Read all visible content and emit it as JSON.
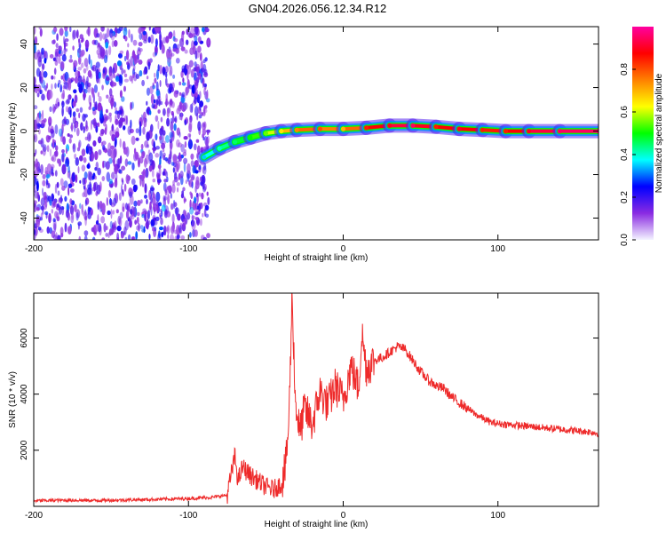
{
  "title": "GN04.2026.056.12.34.R12",
  "chart_data": [
    {
      "type": "heatmap",
      "xlabel": "Height of straight line (km)",
      "ylabel": "Frequency (Hz)",
      "xlim": [
        -200,
        165
      ],
      "ylim": [
        -50,
        48
      ],
      "x_ticks": [
        -200,
        -100,
        0,
        100
      ],
      "y_ticks": [
        -40,
        -20,
        0,
        20,
        40
      ],
      "noise_region": {
        "x_from": -200,
        "x_to": -87,
        "level": "low (0.1-0.25)"
      },
      "ridge": [
        {
          "x": -90,
          "y": -12,
          "amplitude": 0.35
        },
        {
          "x": -80,
          "y": -8,
          "amplitude": 0.4
        },
        {
          "x": -70,
          "y": -5,
          "amplitude": 0.45
        },
        {
          "x": -60,
          "y": -3,
          "amplitude": 0.5
        },
        {
          "x": -50,
          "y": -1,
          "amplitude": 0.55
        },
        {
          "x": -40,
          "y": 0,
          "amplitude": 0.65
        },
        {
          "x": -30,
          "y": 0.5,
          "amplitude": 0.75
        },
        {
          "x": -15,
          "y": 1,
          "amplitude": 0.8
        },
        {
          "x": 0,
          "y": 1,
          "amplitude": 0.7
        },
        {
          "x": 15,
          "y": 1.5,
          "amplitude": 0.85
        },
        {
          "x": 30,
          "y": 2.5,
          "amplitude": 0.9
        },
        {
          "x": 45,
          "y": 2.5,
          "amplitude": 0.95
        },
        {
          "x": 60,
          "y": 2,
          "amplitude": 0.85
        },
        {
          "x": 75,
          "y": 1,
          "amplitude": 0.9
        },
        {
          "x": 90,
          "y": 0.5,
          "amplitude": 0.85
        },
        {
          "x": 105,
          "y": 0,
          "amplitude": 0.85
        },
        {
          "x": 120,
          "y": 0,
          "amplitude": 0.9
        },
        {
          "x": 140,
          "y": 0,
          "amplitude": 0.95
        },
        {
          "x": 165,
          "y": 0,
          "amplitude": 0.95
        }
      ],
      "colorbar": {
        "label": "Normalized spectral amplitude",
        "range": [
          0,
          1
        ],
        "ticks": [
          "0.0",
          "0.2",
          "0.4",
          "0.6",
          "0.8"
        ],
        "colors": [
          "#f4f4ff",
          "#8a2be2",
          "#0000ff",
          "#00ffff",
          "#00ff00",
          "#ffff00",
          "#ff8000",
          "#ff0000",
          "#ff00a0"
        ]
      }
    },
    {
      "type": "line",
      "xlabel": "Height of straight line (km)",
      "ylabel": "SNR (10 * v/v)",
      "xlim": [
        -200,
        165
      ],
      "ylim": [
        0,
        7600
      ],
      "x_ticks": [
        -200,
        -100,
        0,
        100
      ],
      "y_ticks": [
        2000,
        4000,
        6000
      ],
      "color": "#ee2a2a",
      "series": [
        {
          "name": "SNR",
          "points": [
            [
              -200,
              200
            ],
            [
              -180,
              220
            ],
            [
              -160,
              210
            ],
            [
              -140,
              230
            ],
            [
              -120,
              250
            ],
            [
              -100,
              280
            ],
            [
              -85,
              320
            ],
            [
              -75,
              400
            ],
            [
              -70,
              1800
            ],
            [
              -68,
              900
            ],
            [
              -65,
              1400
            ],
            [
              -60,
              1100
            ],
            [
              -55,
              900
            ],
            [
              -50,
              700
            ],
            [
              -45,
              600
            ],
            [
              -40,
              800
            ],
            [
              -37,
              1500
            ],
            [
              -35,
              3200
            ],
            [
              -33,
              7600
            ],
            [
              -31,
              3800
            ],
            [
              -28,
              2600
            ],
            [
              -25,
              3500
            ],
            [
              -20,
              2900
            ],
            [
              -15,
              4100
            ],
            [
              -10,
              3600
            ],
            [
              -5,
              4300
            ],
            [
              0,
              3800
            ],
            [
              5,
              5000
            ],
            [
              10,
              4200
            ],
            [
              12,
              6200
            ],
            [
              15,
              4900
            ],
            [
              20,
              5200
            ],
            [
              25,
              5300
            ],
            [
              30,
              5500
            ],
            [
              35,
              5700
            ],
            [
              40,
              5600
            ],
            [
              45,
              5200
            ],
            [
              50,
              4800
            ],
            [
              55,
              4500
            ],
            [
              60,
              4300
            ],
            [
              65,
              4200
            ],
            [
              70,
              3900
            ],
            [
              75,
              3700
            ],
            [
              80,
              3500
            ],
            [
              85,
              3300
            ],
            [
              90,
              3150
            ],
            [
              95,
              3000
            ],
            [
              100,
              2950
            ],
            [
              110,
              2900
            ],
            [
              120,
              2850
            ],
            [
              130,
              2800
            ],
            [
              140,
              2750
            ],
            [
              150,
              2700
            ],
            [
              160,
              2650
            ],
            [
              165,
              2600
            ]
          ]
        }
      ]
    }
  ]
}
